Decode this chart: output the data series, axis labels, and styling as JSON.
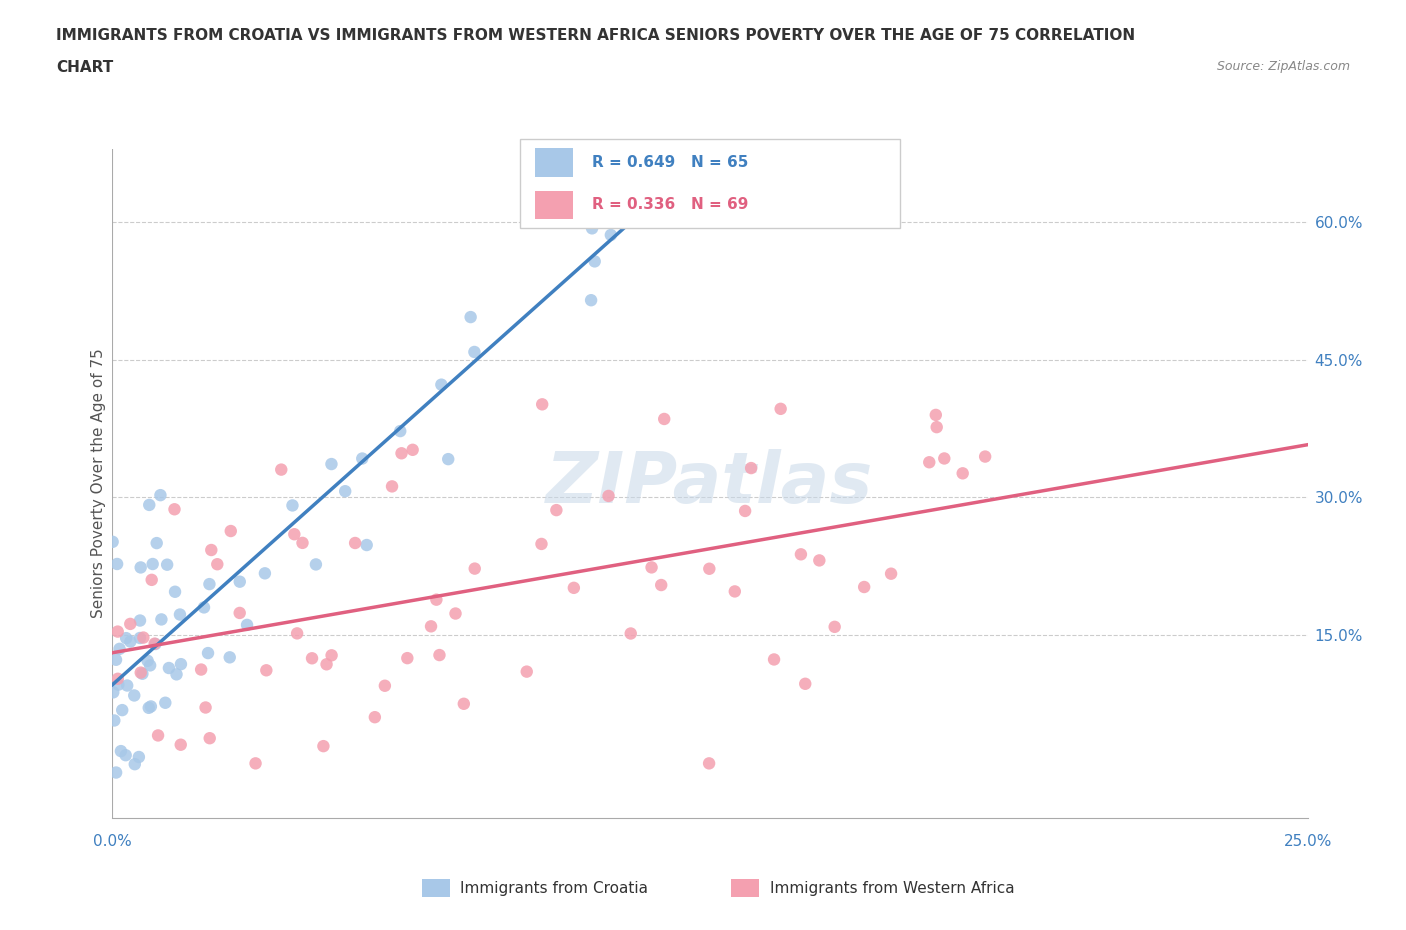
{
  "title_line1": "IMMIGRANTS FROM CROATIA VS IMMIGRANTS FROM WESTERN AFRICA SENIORS POVERTY OVER THE AGE OF 75 CORRELATION",
  "title_line2": "CHART",
  "source": "Source: ZipAtlas.com",
  "ylabel": "Seniors Poverty Over the Age of 75",
  "right_yticks": [
    "15.0%",
    "30.0%",
    "45.0%",
    "60.0%"
  ],
  "right_ytick_vals": [
    0.15,
    0.3,
    0.45,
    0.6
  ],
  "legend_croatia": "R = 0.649   N = 65",
  "legend_w_africa": "R = 0.336   N = 69",
  "legend_label_croatia": "Immigrants from Croatia",
  "legend_label_w_africa": "Immigrants from Western Africa",
  "color_croatia": "#a8c8e8",
  "color_w_africa": "#f4a0b0",
  "line_color_croatia": "#4080c0",
  "line_color_w_africa": "#e06080",
  "watermark": "ZIPatlas",
  "xlim": [
    0.0,
    0.25
  ],
  "ylim": [
    -0.05,
    0.68
  ]
}
